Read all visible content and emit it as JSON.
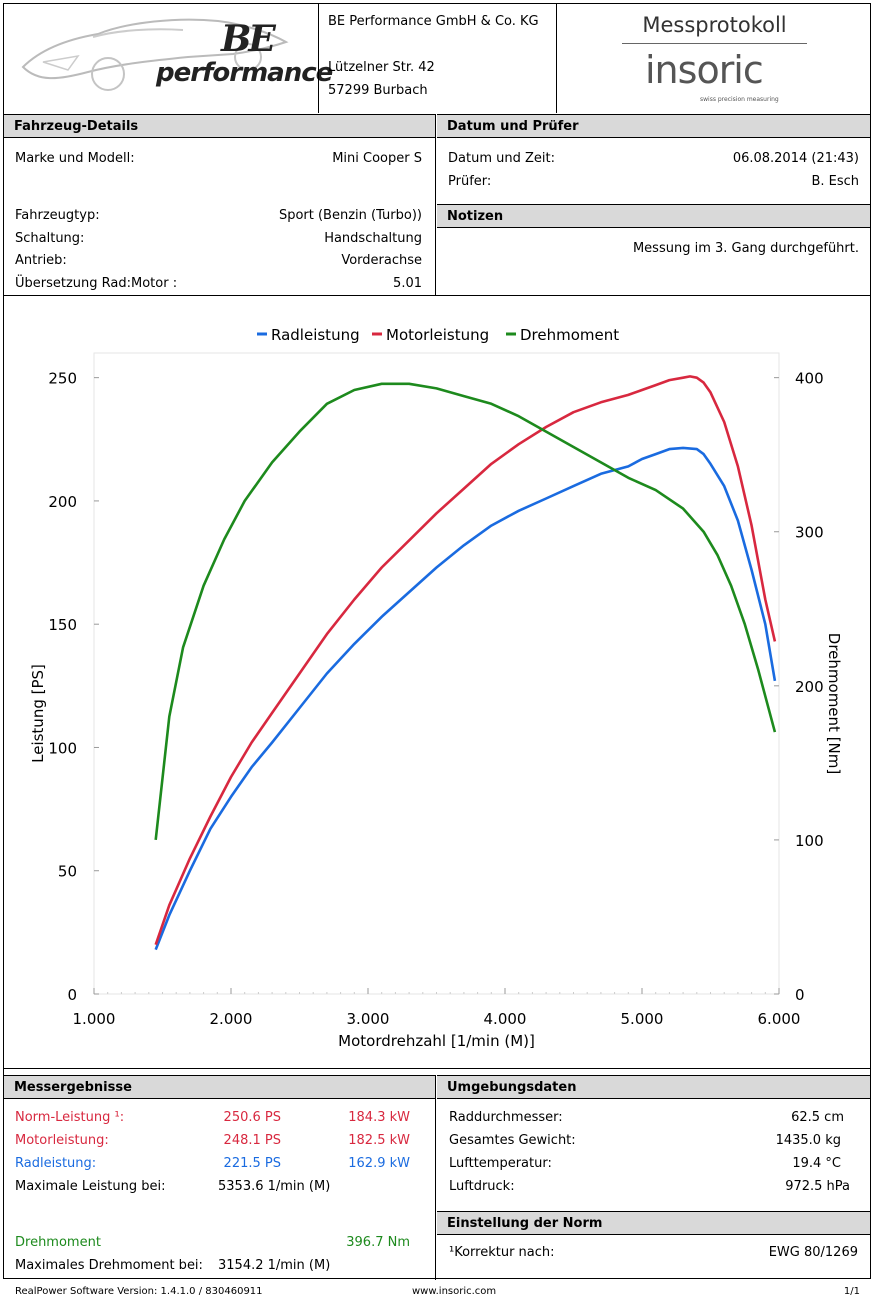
{
  "header": {
    "company_name": "BE Performance GmbH & Co. KG",
    "street": "Lützelner Str. 42",
    "city": "57299 Burbach",
    "logo_text": "performance",
    "logo_mark": "BE",
    "protocol_title": "Messprotokoll",
    "brand": "insoric",
    "brand_tagline": "swiss precision measuring"
  },
  "vehicle": {
    "title": "Fahrzeug-Details",
    "rows": [
      {
        "label": "Marke und Modell:",
        "value": "Mini Cooper S"
      },
      {
        "label": "Fahrzeugtyp:",
        "value": "Sport (Benzin (Turbo))"
      },
      {
        "label": "Schaltung:",
        "value": "Handschaltung"
      },
      {
        "label": "Antrieb:",
        "value": "Vorderachse"
      },
      {
        "label": "Übersetzung Rad:Motor :",
        "value": "5.01"
      }
    ]
  },
  "date_tester": {
    "title": "Datum und Prüfer",
    "rows": [
      {
        "label": "Datum und Zeit:",
        "value": "06.08.2014 (21:43)"
      },
      {
        "label": "Prüfer:",
        "value": "B. Esch"
      }
    ]
  },
  "notes": {
    "title": "Notizen",
    "text": "Messung im 3. Gang durchgeführt."
  },
  "results": {
    "title": "Messergebnisse",
    "norm_label": "Norm-Leistung ¹:",
    "norm_ps": "250.6 PS",
    "norm_kw": "184.3 kW",
    "motor_label": "Motorleistung:",
    "motor_ps": "248.1 PS",
    "motor_kw": "182.5 kW",
    "rad_label": "Radleistung:",
    "rad_ps": "221.5 PS",
    "rad_kw": "162.9 kW",
    "max_power_label": "Maximale Leistung bei:",
    "max_power_rpm": "5353.6  1/min (M)",
    "torque_label": "Drehmoment",
    "torque_value": "396.7 Nm",
    "max_torque_label": "Maximales Drehmoment bei:",
    "max_torque_rpm": "3154.2  1/min (M)"
  },
  "environment": {
    "title": "Umgebungsdaten",
    "rows": [
      {
        "label": "Raddurchmesser:",
        "value": "62.5 cm"
      },
      {
        "label": "Gesamtes Gewicht:",
        "value": "1435.0 kg"
      },
      {
        "label": "Lufttemperatur:",
        "value": "19.4 °C"
      },
      {
        "label": "Luftdruck:",
        "value": "972.5 hPa"
      }
    ]
  },
  "norm": {
    "title": "Einstellung der Norm",
    "label": "¹Korrektur nach:",
    "value": "EWG 80/1269"
  },
  "footer": {
    "software": "RealPower Software Version: 1.4.1.0 / 830460911",
    "url": "www.insoric.com",
    "page": "1/1"
  },
  "colors": {
    "rad": "#1a6be0",
    "motor": "#d8283f",
    "torque": "#1d8a1d"
  },
  "chart_data": {
    "type": "line",
    "xlabel": "Motordrehzahl [1/min (M)]",
    "ylabel": "Leistung [PS]",
    "y2label": "Drehmoment [Nm]",
    "xlim": [
      1000,
      6000
    ],
    "ylim": [
      0,
      260
    ],
    "y2lim": [
      0,
      416
    ],
    "x_ticks": [
      1000,
      2000,
      3000,
      4000,
      5000,
      6000
    ],
    "x_tick_labels": [
      "1.000",
      "2.000",
      "3.000",
      "4.000",
      "5.000",
      "6.000"
    ],
    "y_ticks": [
      0,
      50,
      100,
      150,
      200,
      250
    ],
    "y2_ticks": [
      0,
      100,
      200,
      300,
      400
    ],
    "legend_position": "top",
    "series": [
      {
        "name": "Radleistung",
        "axis": "left",
        "color": "#1a6be0",
        "x": [
          1450,
          1550,
          1700,
          1850,
          2000,
          2150,
          2300,
          2500,
          2700,
          2900,
          3100,
          3300,
          3500,
          3700,
          3900,
          4100,
          4300,
          4500,
          4700,
          4900,
          5000,
          5100,
          5200,
          5300,
          5400,
          5450,
          5500,
          5600,
          5700,
          5800,
          5900,
          5970
        ],
        "y": [
          18,
          32,
          50,
          67,
          80,
          92,
          102,
          116,
          130,
          142,
          153,
          163,
          173,
          182,
          190,
          196,
          201,
          206,
          211,
          214,
          217,
          219,
          221,
          221.5,
          221,
          219,
          215,
          206,
          192,
          172,
          150,
          127
        ]
      },
      {
        "name": "Motorleistung",
        "axis": "left",
        "color": "#d8283f",
        "x": [
          1450,
          1550,
          1700,
          1850,
          2000,
          2150,
          2300,
          2500,
          2700,
          2900,
          3100,
          3300,
          3500,
          3700,
          3900,
          4100,
          4300,
          4500,
          4700,
          4900,
          5000,
          5100,
          5200,
          5300,
          5350,
          5400,
          5450,
          5500,
          5600,
          5700,
          5800,
          5900,
          5970
        ],
        "y": [
          20,
          36,
          55,
          72,
          88,
          102,
          114,
          130,
          146,
          160,
          173,
          184,
          195,
          205,
          215,
          223,
          230,
          236,
          240,
          243,
          245,
          247,
          249,
          250,
          250.5,
          250,
          248,
          244,
          232,
          214,
          190,
          160,
          143
        ]
      },
      {
        "name": "Drehmoment",
        "axis": "right",
        "color": "#1d8a1d",
        "x": [
          1450,
          1550,
          1650,
          1800,
          1950,
          2100,
          2300,
          2500,
          2700,
          2900,
          3100,
          3300,
          3500,
          3700,
          3900,
          4100,
          4300,
          4500,
          4700,
          4900,
          5100,
          5300,
          5450,
          5550,
          5650,
          5750,
          5850,
          5970
        ],
        "y": [
          100,
          180,
          225,
          265,
          295,
          320,
          345,
          365,
          383,
          392,
          396,
          396,
          393,
          388,
          383,
          375,
          365,
          355,
          345,
          335,
          327,
          315,
          300,
          285,
          265,
          240,
          210,
          170
        ]
      }
    ]
  }
}
